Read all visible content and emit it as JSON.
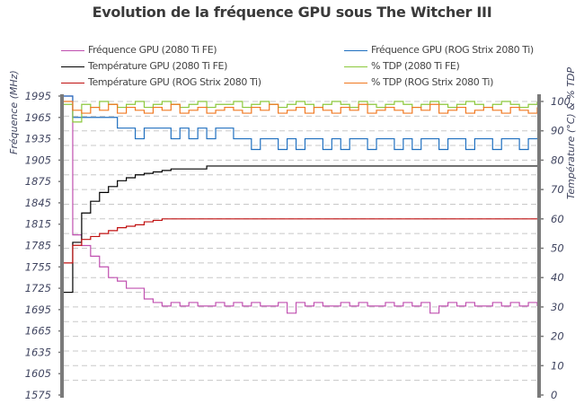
{
  "title": "Evolution de la fréquence GPU sous The Witcher III",
  "chart_data": {
    "type": "line",
    "title": "Evolution de la fréquence GPU sous The Witcher III",
    "ylabel": "Fréquence (MHz)",
    "y2label": "Température (°C) & % TDP",
    "ylim": [
      1575,
      1995
    ],
    "yticks": [
      1995,
      1965,
      1935,
      1905,
      1875,
      1845,
      1815,
      1785,
      1755,
      1725,
      1695,
      1665,
      1635,
      1605,
      1575
    ],
    "y2lim": [
      0,
      100
    ],
    "y2ticks": [
      100,
      90,
      80,
      70,
      60,
      50,
      40,
      30,
      20,
      10,
      0
    ],
    "grid": true,
    "legend_position": "top",
    "series": [
      {
        "name": "Fréquence GPU (2080 Ti FE)",
        "axis": "left",
        "color": "#c050b0",
        "values": [
          1995,
          1800,
          1785,
          1770,
          1755,
          1740,
          1735,
          1725,
          1725,
          1710,
          1705,
          1700,
          1705,
          1700,
          1705,
          1700,
          1700,
          1705,
          1700,
          1705,
          1700,
          1705,
          1700,
          1700,
          1705,
          1690,
          1705,
          1700,
          1705,
          1700,
          1700,
          1705,
          1700,
          1705,
          1700,
          1700,
          1705,
          1700,
          1705,
          1700,
          1705,
          1690,
          1700,
          1705,
          1700,
          1705,
          1700,
          1700,
          1705,
          1700,
          1705,
          1700,
          1705,
          1700
        ]
      },
      {
        "name": "Fréquence GPU (ROG Strix 2080 Ti)",
        "axis": "left",
        "color": "#1f6fbf",
        "values": [
          1995,
          1965,
          1965,
          1965,
          1965,
          1965,
          1950,
          1950,
          1935,
          1950,
          1950,
          1950,
          1935,
          1950,
          1935,
          1950,
          1935,
          1950,
          1950,
          1935,
          1935,
          1920,
          1935,
          1935,
          1920,
          1935,
          1920,
          1935,
          1935,
          1920,
          1935,
          1920,
          1935,
          1935,
          1920,
          1935,
          1935,
          1920,
          1935,
          1920,
          1935,
          1935,
          1920,
          1935,
          1935,
          1920,
          1935,
          1935,
          1920,
          1935,
          1935,
          1920,
          1935,
          1935
        ]
      },
      {
        "name": "Température GPU (2080 Ti FE)",
        "axis": "right",
        "color": "#000000",
        "values": [
          35,
          52,
          62,
          66,
          69,
          71,
          73,
          74,
          75,
          75.5,
          76,
          76.5,
          77,
          77,
          77,
          77,
          78,
          78,
          78,
          78,
          78,
          78,
          78,
          78,
          78,
          78,
          78,
          78,
          78,
          78,
          78,
          78,
          78,
          78,
          78,
          78,
          78,
          78,
          78,
          78,
          78,
          78,
          78,
          78,
          78,
          78,
          78,
          78,
          78,
          78,
          78,
          78,
          78,
          78
        ]
      },
      {
        "name": "% TDP (2080 Ti FE)",
        "axis": "right",
        "color": "#8cc83c",
        "values": [
          99,
          93,
          99,
          98,
          100,
          99,
          98,
          99,
          100,
          98,
          99,
          100,
          99,
          98,
          99,
          100,
          98,
          99,
          99,
          100,
          98,
          99,
          100,
          99,
          98,
          99,
          100,
          99,
          98,
          99,
          100,
          99,
          98,
          100,
          99,
          98,
          99,
          100,
          99,
          98,
          99,
          100,
          99,
          98,
          99,
          100,
          99,
          98,
          99,
          100,
          99,
          98,
          99,
          100
        ]
      },
      {
        "name": "Température GPU (ROG Strix 2080 Ti)",
        "axis": "right",
        "color": "#c01010",
        "values": [
          45,
          51,
          53,
          54,
          55,
          56,
          57,
          57.5,
          58,
          59,
          59.5,
          60,
          60,
          60,
          60,
          60,
          60,
          60,
          60,
          60,
          60,
          60,
          60,
          60,
          60,
          60,
          60,
          60,
          60,
          60,
          60,
          60,
          60,
          60,
          60,
          60,
          60,
          60,
          60,
          60,
          60,
          60,
          60,
          60,
          60,
          60,
          60,
          60,
          60,
          60,
          60,
          60,
          60,
          60
        ]
      },
      {
        "name": "% TDP (ROG Strix 2080 Ti)",
        "axis": "right",
        "color": "#f07820",
        "values": [
          100,
          97,
          96,
          98,
          97,
          99,
          96,
          98,
          97,
          96,
          98,
          97,
          99,
          96,
          97,
          98,
          96,
          97,
          98,
          97,
          96,
          98,
          97,
          99,
          96,
          97,
          98,
          96,
          98,
          97,
          96,
          98,
          97,
          99,
          96,
          97,
          98,
          97,
          96,
          98,
          97,
          99,
          96,
          97,
          98,
          96,
          97,
          98,
          97,
          96,
          98,
          97,
          96,
          98
        ]
      }
    ]
  }
}
